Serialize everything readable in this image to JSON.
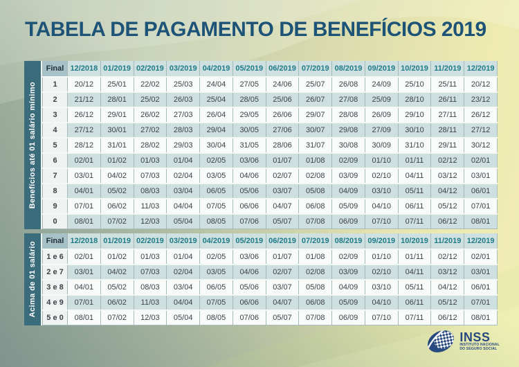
{
  "title": "TABELA DE PAGAMENTO DE BENEFÍCIOS 2019",
  "colors": {
    "title_blue": "#1d5377",
    "band_teal": "#3b6c7c",
    "header_teal_text": "#1e7b87",
    "row_teal": "#cddfde",
    "row_white": "#f8fbfa",
    "logo_blue": "#27497e"
  },
  "months": [
    "12/2018",
    "01/2019",
    "02/2019",
    "03/2019",
    "04/2019",
    "05/2019",
    "06/2019",
    "07/2019",
    "08/2019",
    "09/2019",
    "10/2019",
    "11/2019",
    "12/2019"
  ],
  "table1": {
    "side_label": "Benefícios até 01 salário mínimo",
    "final_header": "Final",
    "rows": [
      {
        "final": "1",
        "dates": [
          "20/12",
          "25/01",
          "22/02",
          "25/03",
          "24/04",
          "27/05",
          "24/06",
          "25/07",
          "26/08",
          "24/09",
          "25/10",
          "25/11",
          "20/12"
        ]
      },
      {
        "final": "2",
        "dates": [
          "21/12",
          "28/01",
          "25/02",
          "26/03",
          "25/04",
          "28/05",
          "25/06",
          "26/07",
          "27/08",
          "25/09",
          "28/10",
          "26/11",
          "23/12"
        ]
      },
      {
        "final": "3",
        "dates": [
          "26/12",
          "29/01",
          "26/02",
          "27/03",
          "26/04",
          "29/05",
          "26/06",
          "29/07",
          "28/08",
          "26/09",
          "29/10",
          "27/11",
          "26/12"
        ]
      },
      {
        "final": "4",
        "dates": [
          "27/12",
          "30/01",
          "27/02",
          "28/03",
          "29/04",
          "30/05",
          "27/06",
          "30/07",
          "29/08",
          "27/09",
          "30/10",
          "28/11",
          "27/12"
        ]
      },
      {
        "final": "5",
        "dates": [
          "28/12",
          "31/01",
          "28/02",
          "29/03",
          "30/04",
          "31/05",
          "28/06",
          "31/07",
          "30/08",
          "30/09",
          "31/10",
          "29/11",
          "30/12"
        ]
      },
      {
        "final": "6",
        "dates": [
          "02/01",
          "01/02",
          "01/03",
          "01/04",
          "02/05",
          "03/06",
          "01/07",
          "01/08",
          "02/09",
          "01/10",
          "01/11",
          "02/12",
          "02/01"
        ]
      },
      {
        "final": "7",
        "dates": [
          "03/01",
          "04/02",
          "07/03",
          "02/04",
          "03/05",
          "04/06",
          "02/07",
          "02/08",
          "03/09",
          "02/10",
          "04/11",
          "03/12",
          "03/01"
        ]
      },
      {
        "final": "8",
        "dates": [
          "04/01",
          "05/02",
          "08/03",
          "03/04",
          "06/05",
          "05/06",
          "03/07",
          "05/08",
          "04/09",
          "03/10",
          "05/11",
          "04/12",
          "06/01"
        ]
      },
      {
        "final": "9",
        "dates": [
          "07/01",
          "06/02",
          "11/03",
          "04/04",
          "07/05",
          "06/06",
          "04/07",
          "06/08",
          "05/09",
          "04/10",
          "06/11",
          "05/12",
          "07/01"
        ]
      },
      {
        "final": "0",
        "dates": [
          "08/01",
          "07/02",
          "12/03",
          "05/04",
          "08/05",
          "07/06",
          "05/07",
          "07/08",
          "06/09",
          "07/10",
          "07/11",
          "06/12",
          "08/01"
        ]
      }
    ]
  },
  "table2": {
    "side_label": "Acima de 01 salário",
    "final_header": "Final",
    "rows": [
      {
        "final": "1 e 6",
        "dates": [
          "02/01",
          "01/02",
          "01/03",
          "01/04",
          "02/05",
          "03/06",
          "01/07",
          "01/08",
          "02/09",
          "01/10",
          "01/11",
          "02/12",
          "02/01"
        ]
      },
      {
        "final": "2 e 7",
        "dates": [
          "03/01",
          "04/02",
          "07/03",
          "02/04",
          "03/05",
          "04/06",
          "02/07",
          "02/08",
          "03/09",
          "02/10",
          "04/11",
          "03/12",
          "03/01"
        ]
      },
      {
        "final": "3 e 8",
        "dates": [
          "04/01",
          "05/02",
          "08/03",
          "03/04",
          "06/05",
          "05/06",
          "03/07",
          "05/08",
          "04/09",
          "03/10",
          "05/11",
          "04/12",
          "06/01"
        ]
      },
      {
        "final": "4 e 9",
        "dates": [
          "07/01",
          "06/02",
          "11/03",
          "04/04",
          "07/05",
          "06/06",
          "04/07",
          "06/08",
          "05/09",
          "04/10",
          "06/11",
          "05/12",
          "07/01"
        ]
      },
      {
        "final": "5 e 0",
        "dates": [
          "08/01",
          "07/02",
          "12/03",
          "05/04",
          "08/05",
          "07/06",
          "05/07",
          "07/08",
          "06/09",
          "07/10",
          "07/11",
          "06/12",
          "08/01"
        ]
      }
    ]
  },
  "logo": {
    "name": "INSS",
    "tagline_line1": "INSTITUTO NACIONAL",
    "tagline_line2": "DO SEGURO SOCIAL"
  }
}
